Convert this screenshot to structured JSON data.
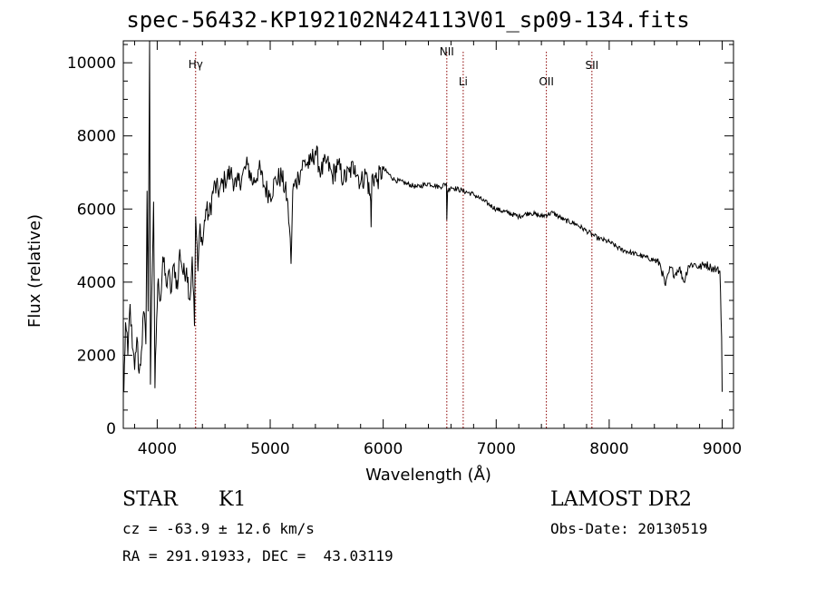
{
  "figure": {
    "title": "spec-56432-KP192102N424113V01_sp09-134.fits",
    "object_class": "STAR",
    "subclass": "K1",
    "survey": "LAMOST DR2",
    "redshift_text": "cz = -63.9 ± 12.6 km/s",
    "obs_date_text": "Obs-Date: 20130519",
    "coords_text": "RA = 291.91933, DEC =  43.03119"
  },
  "chart_data": {
    "type": "line",
    "title": "spec-56432-KP192102N424113V01_sp09-134.fits",
    "xlabel": "Wavelength (Å)",
    "ylabel": "Flux (relative)",
    "xlim": [
      3700,
      9100
    ],
    "ylim": [
      0,
      10600
    ],
    "xticks": [
      4000,
      5000,
      6000,
      7000,
      8000,
      9000
    ],
    "yticks": [
      0,
      2000,
      4000,
      6000,
      8000,
      10000
    ],
    "grid": false,
    "legend": "none",
    "line_color": "#000000",
    "marker_color": "#8b0000",
    "spectral_lines": [
      {
        "label": "Hγ",
        "wavelength": 4340
      },
      {
        "label": "NII",
        "wavelength": 6563
      },
      {
        "label": "Li",
        "wavelength": 6708
      },
      {
        "label": "OII",
        "wavelength": 7444
      },
      {
        "label": "SII",
        "wavelength": 7847
      }
    ],
    "series": [
      {
        "x": [
          3705,
          3720,
          3740,
          3760,
          3780,
          3800,
          3820,
          3840,
          3860,
          3880,
          3900,
          3910,
          3920,
          3933,
          3940,
          3950,
          3968,
          3980,
          3995,
          4010,
          4030,
          4050,
          4080,
          4100,
          4120,
          4150,
          4180,
          4200,
          4230,
          4260,
          4290,
          4310,
          4330,
          4340,
          4360,
          4380,
          4400,
          4430,
          4460,
          4500,
          4550,
          4600,
          4650,
          4700,
          4750,
          4800,
          4850,
          4900,
          4950,
          5000,
          5050,
          5100,
          5150,
          5170,
          5184,
          5200,
          5250,
          5300,
          5350,
          5400,
          5450,
          5500,
          5550,
          5600,
          5650,
          5700,
          5750,
          5800,
          5850,
          5890,
          5893,
          5900,
          5950,
          6000,
          6100,
          6200,
          6300,
          6400,
          6500,
          6560,
          6563,
          6570,
          6600,
          6700,
          6800,
          6900,
          7000,
          7100,
          7200,
          7300,
          7400,
          7500,
          7600,
          7700,
          7800,
          7850,
          7900,
          8000,
          8100,
          8200,
          8300,
          8400,
          8450,
          8498,
          8542,
          8580,
          8620,
          8662,
          8700,
          8750,
          8800,
          8850,
          8900,
          8950,
          8980,
          8995,
          9000
        ],
        "y": [
          1000,
          2900,
          2000,
          3400,
          2200,
          1600,
          2500,
          1500,
          2100,
          3200,
          2300,
          6500,
          3200,
          10600,
          1200,
          3500,
          6200,
          1100,
          3000,
          4100,
          3500,
          4700,
          3900,
          4300,
          3700,
          4500,
          3800,
          4900,
          4200,
          4400,
          3500,
          4700,
          2800,
          5800,
          4300,
          5600,
          5000,
          6000,
          5800,
          6600,
          6500,
          6800,
          7000,
          6600,
          6900,
          7200,
          6700,
          7100,
          6600,
          6400,
          6800,
          6900,
          6300,
          5500,
          4500,
          6500,
          6900,
          7300,
          7200,
          7600,
          7000,
          7300,
          6900,
          7200,
          6800,
          7000,
          7200,
          6700,
          7000,
          6200,
          5500,
          6900,
          6800,
          7100,
          6800,
          6700,
          6600,
          6700,
          6600,
          6700,
          5700,
          6500,
          6600,
          6500,
          6400,
          6200,
          6000,
          5900,
          5800,
          5900,
          5800,
          5900,
          5700,
          5600,
          5400,
          5300,
          5200,
          5100,
          4900,
          4800,
          4700,
          4600,
          4500,
          3900,
          4400,
          4200,
          4400,
          4000,
          4450,
          4500,
          4400,
          4500,
          4400,
          4350,
          4300,
          2500,
          1000
        ]
      }
    ]
  }
}
